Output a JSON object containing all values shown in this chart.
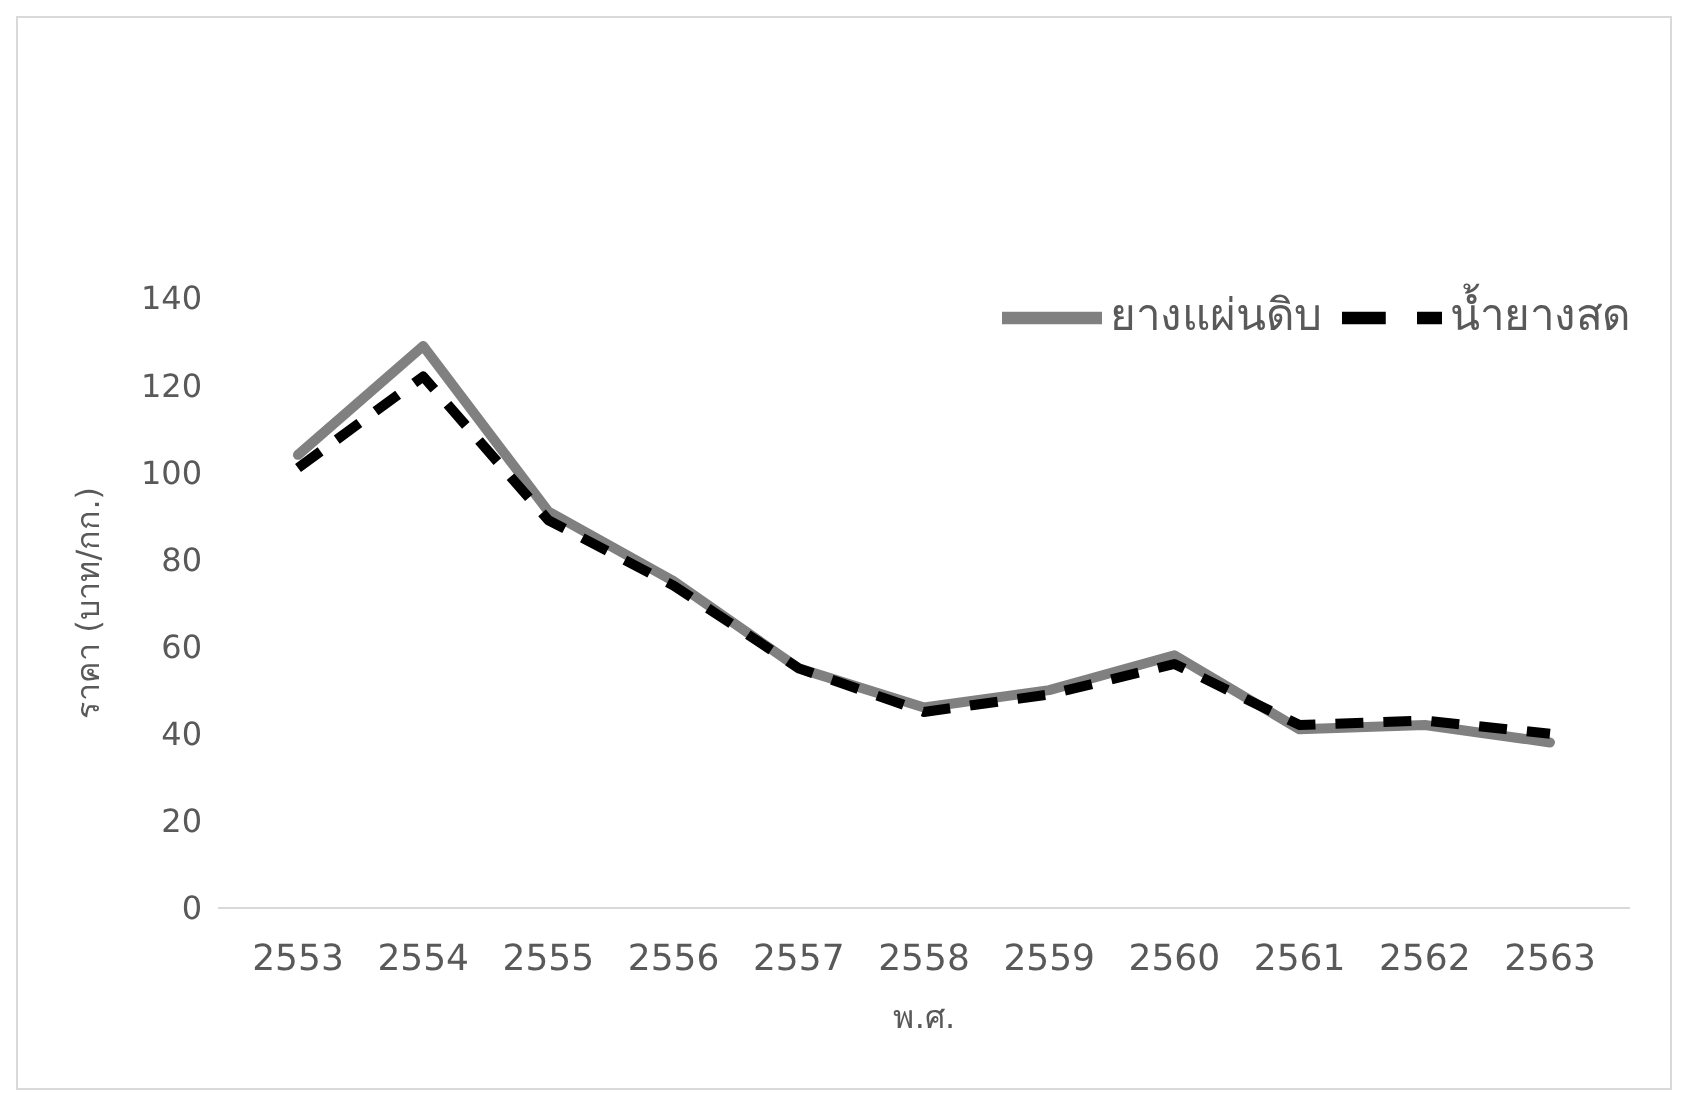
{
  "chart_data": {
    "type": "line",
    "xlabel": "พ.ศ.",
    "ylabel": "ราคา (บาท/กก.)",
    "categories": [
      "2553",
      "2554",
      "2555",
      "2556",
      "2557",
      "2558",
      "2559",
      "2560",
      "2561",
      "2562",
      "2563"
    ],
    "series": [
      {
        "name": "ยางแผ่นดิบ",
        "color": "#808080",
        "line_style": "solid",
        "values": [
          104,
          129,
          91,
          75,
          55,
          46,
          50,
          58,
          41,
          42,
          38
        ]
      },
      {
        "name": "น้ำยางสด",
        "color": "#000000",
        "line_style": "dashed",
        "values": [
          101,
          122,
          89,
          74,
          55,
          45,
          49,
          56,
          42,
          43,
          40
        ]
      }
    ],
    "ylim": [
      0,
      140
    ],
    "yticks": [
      0,
      20,
      40,
      60,
      80,
      100,
      120,
      140
    ],
    "grid": false,
    "legend": "top right",
    "marker": "none"
  }
}
